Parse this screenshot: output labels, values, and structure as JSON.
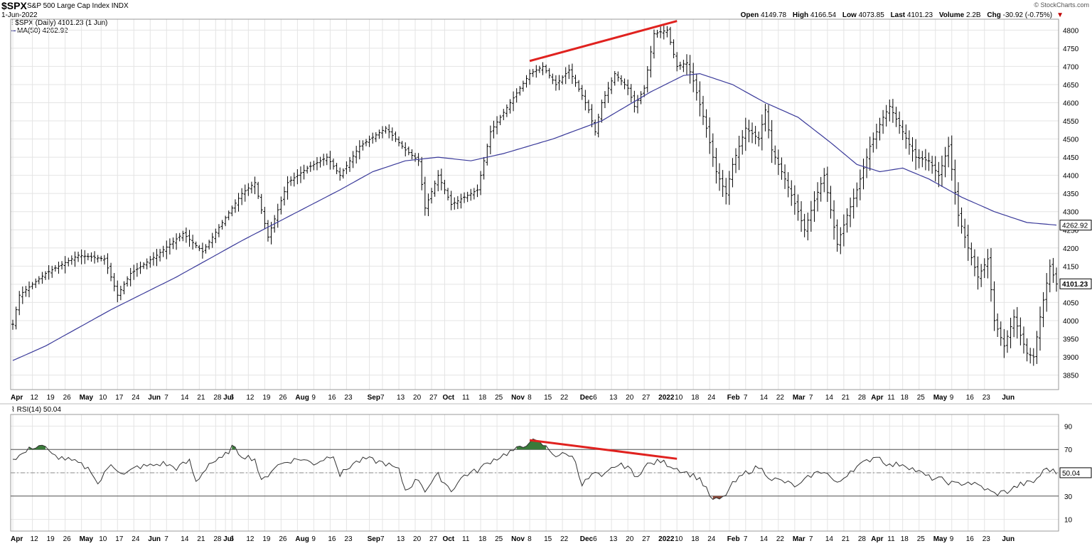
{
  "header": {
    "symbol": "$SPX",
    "name": "S&P 500 Large Cap Index",
    "exchange": "INDX",
    "date": "1-Jun-2022",
    "brand": "© StockCharts.com",
    "open_label": "Open",
    "open": "4149.78",
    "high_label": "High",
    "high": "4166.54",
    "low_label": "Low",
    "low": "4073.85",
    "last_label": "Last",
    "last": "4101.23",
    "volume_label": "Volume",
    "volume": "2.2B",
    "chg_label": "Chg",
    "chg": "-30.92 (-0.75%)",
    "price_legend": "$SPX (Daily) 4101.23 (1 Jun)",
    "ma_legend": "MA(50) 4262.92",
    "rsi_legend": "RSI(14) 50.04"
  },
  "colors": {
    "price_bar": "#000000",
    "ma_line": "#3a3a9a",
    "trendline": "#e0221f",
    "rsi_line": "#333333",
    "rsi_overbought_fill": "#3a7a3a",
    "rsi_oversold_fill": "#8b4a3a",
    "grid": "#e4e4e4"
  },
  "chart_data": [
    {
      "type": "ohlc",
      "title": "$SPX S&P 500 Large Cap Index",
      "ylim": [
        3810,
        4830
      ],
      "yticks": [
        3850,
        3900,
        3950,
        4000,
        4050,
        4100,
        4150,
        4200,
        4250,
        4300,
        4350,
        4400,
        4450,
        4500,
        4550,
        4600,
        4650,
        4700,
        4750,
        4800
      ],
      "grid": true,
      "last_value_label": "4101.23",
      "ma_value_label": "4262.92",
      "price_keypoints": [
        [
          0,
          3990
        ],
        [
          2,
          4070
        ],
        [
          10,
          4130
        ],
        [
          20,
          4180
        ],
        [
          28,
          4170
        ],
        [
          32,
          4070
        ],
        [
          36,
          4130
        ],
        [
          44,
          4180
        ],
        [
          52,
          4240
        ],
        [
          58,
          4190
        ],
        [
          64,
          4270
        ],
        [
          70,
          4350
        ],
        [
          74,
          4380
        ],
        [
          78,
          4230
        ],
        [
          84,
          4380
        ],
        [
          90,
          4420
        ],
        [
          96,
          4450
        ],
        [
          100,
          4400
        ],
        [
          106,
          4480
        ],
        [
          114,
          4530
        ],
        [
          120,
          4470
        ],
        [
          124,
          4440
        ],
        [
          126,
          4310
        ],
        [
          130,
          4400
        ],
        [
          134,
          4320
        ],
        [
          138,
          4340
        ],
        [
          142,
          4360
        ],
        [
          146,
          4520
        ],
        [
          152,
          4600
        ],
        [
          158,
          4680
        ],
        [
          162,
          4700
        ],
        [
          166,
          4650
        ],
        [
          170,
          4690
        ],
        [
          174,
          4620
        ],
        [
          176,
          4580
        ],
        [
          178,
          4520
        ],
        [
          180,
          4600
        ],
        [
          184,
          4680
        ],
        [
          188,
          4640
        ],
        [
          190,
          4590
        ],
        [
          193,
          4640
        ],
        [
          196,
          4790
        ],
        [
          200,
          4800
        ],
        [
          203,
          4700
        ],
        [
          206,
          4710
        ],
        [
          208,
          4660
        ],
        [
          212,
          4530
        ],
        [
          215,
          4410
        ],
        [
          218,
          4350
        ],
        [
          220,
          4430
        ],
        [
          224,
          4530
        ],
        [
          228,
          4500
        ],
        [
          230,
          4580
        ],
        [
          232,
          4470
        ],
        [
          236,
          4390
        ],
        [
          240,
          4300
        ],
        [
          242,
          4250
        ],
        [
          245,
          4330
        ],
        [
          248,
          4400
        ],
        [
          252,
          4210
        ],
        [
          255,
          4290
        ],
        [
          258,
          4360
        ],
        [
          262,
          4480
        ],
        [
          266,
          4560
        ],
        [
          268,
          4590
        ],
        [
          272,
          4520
        ],
        [
          276,
          4450
        ],
        [
          280,
          4440
        ],
        [
          283,
          4400
        ],
        [
          286,
          4480
        ],
        [
          289,
          4290
        ],
        [
          292,
          4200
        ],
        [
          295,
          4120
        ],
        [
          298,
          4170
        ],
        [
          300,
          4000
        ],
        [
          303,
          3930
        ],
        [
          306,
          4010
        ],
        [
          310,
          3910
        ],
        [
          312,
          3900
        ],
        [
          314,
          4010
        ],
        [
          317,
          4150
        ],
        [
          319,
          4101
        ]
      ],
      "ma50_keypoints": [
        [
          0,
          3890
        ],
        [
          10,
          3930
        ],
        [
          30,
          4030
        ],
        [
          50,
          4120
        ],
        [
          70,
          4220
        ],
        [
          85,
          4290
        ],
        [
          100,
          4360
        ],
        [
          110,
          4410
        ],
        [
          120,
          4440
        ],
        [
          130,
          4450
        ],
        [
          140,
          4440
        ],
        [
          150,
          4460
        ],
        [
          165,
          4500
        ],
        [
          180,
          4550
        ],
        [
          195,
          4630
        ],
        [
          205,
          4675
        ],
        [
          210,
          4680
        ],
        [
          220,
          4650
        ],
        [
          230,
          4600
        ],
        [
          240,
          4560
        ],
        [
          250,
          4490
        ],
        [
          258,
          4430
        ],
        [
          265,
          4410
        ],
        [
          272,
          4420
        ],
        [
          280,
          4390
        ],
        [
          290,
          4340
        ],
        [
          300,
          4300
        ],
        [
          310,
          4270
        ],
        [
          319,
          4263
        ]
      ],
      "price_trendline": {
        "from": [
          158,
          4715
        ],
        "to": [
          203,
          4825
        ]
      },
      "x_axis_labels": [
        {
          "i": 0,
          "t": "Apr"
        },
        {
          "i": 6,
          "t": "12"
        },
        {
          "i": 11,
          "t": "19"
        },
        {
          "i": 16,
          "t": "26"
        },
        {
          "i": 21,
          "t": "May"
        },
        {
          "i": 27,
          "t": "10"
        },
        {
          "i": 32,
          "t": "17"
        },
        {
          "i": 37,
          "t": "24"
        },
        {
          "i": 42,
          "t": "Jun"
        },
        {
          "i": 47,
          "t": "7"
        },
        {
          "i": 52,
          "t": "14"
        },
        {
          "i": 57,
          "t": "21"
        },
        {
          "i": 62,
          "t": "28"
        },
        {
          "i": 65,
          "t": "Jul"
        },
        {
          "i": 67,
          "t": "6"
        },
        {
          "i": 72,
          "t": "12"
        },
        {
          "i": 77,
          "t": "19"
        },
        {
          "i": 82,
          "t": "26"
        },
        {
          "i": 87,
          "t": "Aug"
        },
        {
          "i": 92,
          "t": "9"
        },
        {
          "i": 97,
          "t": "16"
        },
        {
          "i": 102,
          "t": "23"
        },
        {
          "i": 109,
          "t": "Sep"
        },
        {
          "i": 113,
          "t": "7"
        },
        {
          "i": 118,
          "t": "13"
        },
        {
          "i": 123,
          "t": "20"
        },
        {
          "i": 128,
          "t": "27"
        },
        {
          "i": 132,
          "t": "Oct"
        },
        {
          "i": 138,
          "t": "11"
        },
        {
          "i": 143,
          "t": "18"
        },
        {
          "i": 148,
          "t": "25"
        },
        {
          "i": 153,
          "t": "Nov"
        },
        {
          "i": 158,
          "t": "8"
        },
        {
          "i": 163,
          "t": "15"
        },
        {
          "i": 168,
          "t": "22"
        },
        {
          "i": 174,
          "t": "Dec"
        },
        {
          "i": 178,
          "t": "6"
        },
        {
          "i": 183,
          "t": "13"
        },
        {
          "i": 188,
          "t": "20"
        },
        {
          "i": 193,
          "t": "27"
        },
        {
          "i": 198,
          "t": "2022"
        },
        {
          "i": 203,
          "t": "10"
        },
        {
          "i": 208,
          "t": "18"
        },
        {
          "i": 213,
          "t": "24"
        },
        {
          "i": 219,
          "t": "Feb"
        },
        {
          "i": 224,
          "t": "7"
        },
        {
          "i": 229,
          "t": "14"
        },
        {
          "i": 234,
          "t": "22"
        },
        {
          "i": 239,
          "t": "Mar"
        },
        {
          "i": 244,
          "t": "7"
        },
        {
          "i": 249,
          "t": "14"
        },
        {
          "i": 254,
          "t": "21"
        },
        {
          "i": 259,
          "t": "28"
        },
        {
          "i": 263,
          "t": "Apr"
        },
        {
          "i": 268,
          "t": "11"
        },
        {
          "i": 272,
          "t": "18"
        },
        {
          "i": 277,
          "t": "25"
        },
        {
          "i": 282,
          "t": "May"
        },
        {
          "i": 287,
          "t": "9"
        },
        {
          "i": 292,
          "t": "16"
        },
        {
          "i": 297,
          "t": "23"
        },
        {
          "i": 303,
          "t": "Jun"
        }
      ]
    },
    {
      "type": "line",
      "title": "RSI(14)",
      "ylim": [
        0,
        100
      ],
      "yticks": [
        10,
        30,
        50,
        70,
        90
      ],
      "reference_lines": [
        30,
        50,
        70
      ],
      "last_value_label": "50.04",
      "rsi_keypoints": [
        [
          0,
          62
        ],
        [
          3,
          66
        ],
        [
          6,
          72
        ],
        [
          9,
          74
        ],
        [
          12,
          65
        ],
        [
          16,
          62
        ],
        [
          20,
          58
        ],
        [
          24,
          52
        ],
        [
          26,
          40
        ],
        [
          30,
          58
        ],
        [
          34,
          48
        ],
        [
          38,
          55
        ],
        [
          42,
          56
        ],
        [
          46,
          58
        ],
        [
          50,
          54
        ],
        [
          54,
          60
        ],
        [
          56,
          42
        ],
        [
          60,
          58
        ],
        [
          64,
          62
        ],
        [
          67,
          72
        ],
        [
          70,
          65
        ],
        [
          74,
          62
        ],
        [
          76,
          42
        ],
        [
          80,
          55
        ],
        [
          84,
          60
        ],
        [
          88,
          62
        ],
        [
          92,
          58
        ],
        [
          96,
          63
        ],
        [
          98,
          66
        ],
        [
          100,
          48
        ],
        [
          104,
          58
        ],
        [
          108,
          62
        ],
        [
          114,
          58
        ],
        [
          118,
          52
        ],
        [
          120,
          35
        ],
        [
          124,
          45
        ],
        [
          126,
          35
        ],
        [
          130,
          48
        ],
        [
          134,
          35
        ],
        [
          138,
          48
        ],
        [
          142,
          52
        ],
        [
          146,
          60
        ],
        [
          152,
          68
        ],
        [
          156,
          72
        ],
        [
          158,
          78
        ],
        [
          162,
          74
        ],
        [
          166,
          65
        ],
        [
          170,
          66
        ],
        [
          172,
          60
        ],
        [
          174,
          40
        ],
        [
          178,
          50
        ],
        [
          180,
          45
        ],
        [
          184,
          56
        ],
        [
          188,
          56
        ],
        [
          190,
          46
        ],
        [
          194,
          57
        ],
        [
          198,
          60
        ],
        [
          202,
          55
        ],
        [
          206,
          50
        ],
        [
          210,
          45
        ],
        [
          214,
          26
        ],
        [
          217,
          28
        ],
        [
          220,
          40
        ],
        [
          224,
          50
        ],
        [
          228,
          55
        ],
        [
          232,
          45
        ],
        [
          236,
          42
        ],
        [
          240,
          38
        ],
        [
          244,
          48
        ],
        [
          248,
          52
        ],
        [
          252,
          40
        ],
        [
          256,
          52
        ],
        [
          260,
          58
        ],
        [
          264,
          65
        ],
        [
          268,
          56
        ],
        [
          272,
          58
        ],
        [
          276,
          52
        ],
        [
          280,
          46
        ],
        [
          284,
          44
        ],
        [
          288,
          40
        ],
        [
          292,
          42
        ],
        [
          296,
          38
        ],
        [
          300,
          32
        ],
        [
          304,
          34
        ],
        [
          308,
          40
        ],
        [
          312,
          42
        ],
        [
          316,
          54
        ],
        [
          319,
          50
        ]
      ],
      "rsi_trendline": {
        "from": [
          158,
          78
        ],
        "to": [
          203,
          62
        ]
      }
    }
  ]
}
